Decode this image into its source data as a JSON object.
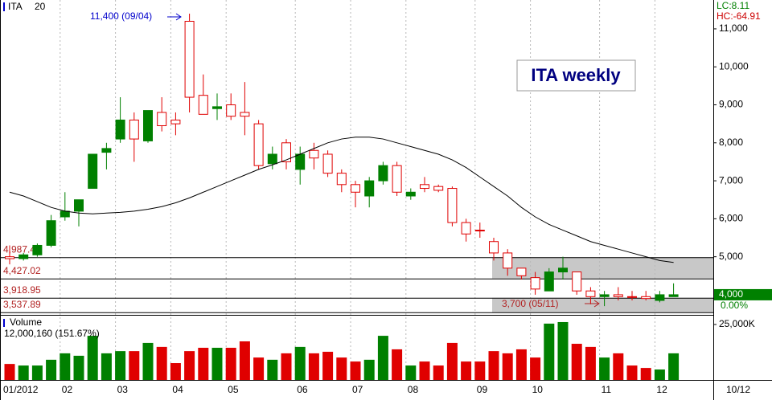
{
  "chart_data": {
    "type": "candlestick",
    "title": "ITA weekly",
    "symbol": "ITA",
    "period": "20",
    "lc_label": "LC:8.11",
    "hc_label": "HC:-64.91",
    "last_label": "4,000",
    "change_label": "0.00%",
    "date_label": "10/12",
    "high_annotation": "11,400 (09/04)",
    "low_annotation": "3,700 (05/11)",
    "categories": [
      "01/2012",
      null,
      null,
      null,
      "02",
      null,
      null,
      null,
      "03",
      null,
      null,
      null,
      "04",
      null,
      null,
      null,
      "05",
      null,
      null,
      null,
      null,
      "06",
      null,
      null,
      null,
      "07",
      null,
      null,
      null,
      "08",
      null,
      null,
      null,
      null,
      "09",
      null,
      null,
      null,
      "10",
      null,
      null,
      null,
      null,
      "11",
      null,
      null,
      null,
      "12",
      null
    ],
    "up_color": "#008000",
    "down_color": "#e00000",
    "ohlc": {
      "open": [
        5000,
        4950,
        5050,
        5300,
        6050,
        6200,
        6800,
        7750,
        8100,
        8600,
        8050,
        8800,
        8600,
        11200,
        9250,
        8900,
        9000,
        8800,
        8500,
        7450,
        8000,
        7300,
        7800,
        7700,
        7200,
        6900,
        6600,
        7000,
        7400,
        6600,
        6900,
        6850,
        6800,
        5900,
        5700,
        5400,
        5100,
        4700,
        4450,
        4100,
        4600,
        4600,
        4100,
        3950,
        4000,
        3950,
        3950,
        3850,
        3950
      ],
      "high": [
        5300,
        5100,
        5350,
        6100,
        6700,
        6500,
        7700,
        8000,
        9200,
        8800,
        8850,
        9200,
        8800,
        11400,
        9800,
        9300,
        9300,
        9600,
        8600,
        7900,
        8100,
        7900,
        8000,
        7800,
        7300,
        7000,
        7100,
        7500,
        7500,
        6800,
        7100,
        6900,
        6850,
        6000,
        5900,
        5500,
        5200,
        4700,
        4600,
        4700,
        5000,
        4600,
        4200,
        4100,
        4200,
        4100,
        4100,
        4100,
        4300
      ],
      "low": [
        4800,
        4900,
        5000,
        5250,
        5950,
        5800,
        6800,
        7300,
        8000,
        7500,
        8000,
        8300,
        8200,
        8800,
        8800,
        8600,
        8600,
        8200,
        7300,
        7300,
        7300,
        6900,
        7300,
        7100,
        6700,
        6300,
        6300,
        6900,
        6600,
        6500,
        6700,
        6700,
        5800,
        5400,
        5500,
        4900,
        4500,
        4400,
        4000,
        4100,
        4400,
        4000,
        3750,
        3700,
        3850,
        3850,
        3850,
        3800,
        3950
      ],
      "close": [
        4950,
        5050,
        5300,
        5950,
        6200,
        6500,
        7700,
        7850,
        8600,
        8100,
        8850,
        8450,
        8500,
        9200,
        8750,
        8950,
        8700,
        8700,
        7400,
        7700,
        7500,
        7700,
        7600,
        7200,
        6900,
        6700,
        7000,
        7400,
        6700,
        6700,
        6800,
        6750,
        5900,
        5600,
        5700,
        5100,
        4700,
        4500,
        4150,
        4600,
        4700,
        4100,
        3950,
        4000,
        3950,
        3950,
        3900,
        4000,
        4000
      ]
    },
    "ma": {
      "color": "#000000",
      "values": [
        6700,
        6600,
        6450,
        6300,
        6200,
        6150,
        6130,
        6150,
        6170,
        6200,
        6250,
        6320,
        6420,
        6550,
        6700,
        6850,
        7000,
        7150,
        7300,
        7420,
        7550,
        7700,
        7850,
        8000,
        8100,
        8150,
        8150,
        8100,
        8000,
        7900,
        7800,
        7700,
        7550,
        7350,
        7100,
        6850,
        6600,
        6300,
        6050,
        5850,
        5700,
        5550,
        5400,
        5300,
        5200,
        5100,
        5000,
        4900,
        4850
      ]
    },
    "ylim": [
      3470,
      11760
    ],
    "yticks": [
      {
        "value": 5000,
        "label": "5,000"
      },
      {
        "value": 6000,
        "label": "6,000"
      },
      {
        "value": 7000,
        "label": "7,000"
      },
      {
        "value": 8000,
        "label": "8,000"
      },
      {
        "value": 9000,
        "label": "9,000"
      },
      {
        "value": 10000,
        "label": "10,000"
      },
      {
        "value": 11000,
        "label": "11,000"
      }
    ],
    "levels": [
      {
        "value": 4987.43,
        "label": "4,987.43"
      },
      {
        "value": 4427.02,
        "label": "4,427.02"
      },
      {
        "value": 3918.95,
        "label": "3,918.95"
      },
      {
        "value": 3537.89,
        "label": "3,537.89"
      }
    ],
    "volume": {
      "name": "Volume",
      "value_label": "12,000,160 (151.67%)",
      "values": [
        7200000,
        6500000,
        6500000,
        9100000,
        12000000,
        10900000,
        19900000,
        12000000,
        13000000,
        13000000,
        16700000,
        14900000,
        7600000,
        13000000,
        14500000,
        14500000,
        14500000,
        17400000,
        10100000,
        9100000,
        12000000,
        14900000,
        12000000,
        12700000,
        10100000,
        8300000,
        9100000,
        19900000,
        13800000,
        6500000,
        8300000,
        6500000,
        16700000,
        8300000,
        8300000,
        13000000,
        12000000,
        13800000,
        10100000,
        25400000,
        26100000,
        16300000,
        14900000,
        10100000,
        12000000,
        6500000,
        5400000,
        4700000,
        12000160
      ],
      "ylim": [
        0,
        29350000
      ],
      "yticks": [
        {
          "value": 25000000,
          "label": "25,000K"
        }
      ]
    }
  }
}
